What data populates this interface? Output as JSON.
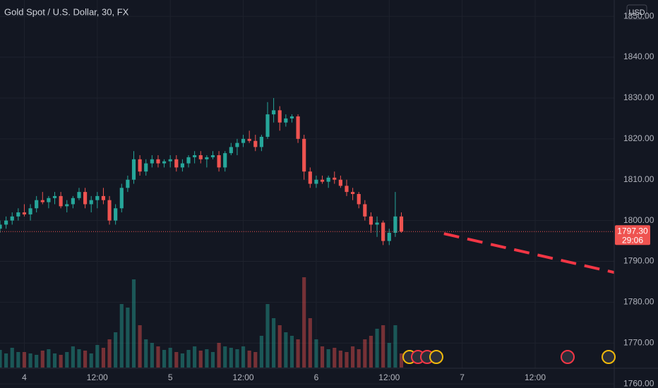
{
  "chart_data": {
    "type": "candlestick",
    "title": "Gold Spot / U.S. Dollar, 30, FX",
    "currency": "USD",
    "up_color": "#26a69a",
    "down_color": "#ef5350",
    "grid": true,
    "xlim": [
      -4,
      97
    ],
    "xticks": [
      {
        "value": 0,
        "label": "4"
      },
      {
        "value": 12,
        "label": "12:00"
      },
      {
        "value": 24,
        "label": "5"
      },
      {
        "value": 36,
        "label": "12:00"
      },
      {
        "value": 48,
        "label": "6"
      },
      {
        "value": 60,
        "label": "12:00"
      },
      {
        "value": 72,
        "label": "7"
      },
      {
        "value": 84,
        "label": "12:00"
      }
    ],
    "ylim": [
      1759,
      1854
    ],
    "yticks": [
      {
        "value": 1760,
        "label": "1760.00"
      },
      {
        "value": 1770,
        "label": "1770.00"
      },
      {
        "value": 1780,
        "label": "1780.00"
      },
      {
        "value": 1790,
        "label": "1790.00"
      },
      {
        "value": 1800,
        "label": "1800.00"
      },
      {
        "value": 1810,
        "label": "1810.00"
      },
      {
        "value": 1820,
        "label": "1820.00"
      },
      {
        "value": 1830,
        "label": "1830.00"
      },
      {
        "value": 1840,
        "label": "1840.00"
      },
      {
        "value": 1850,
        "label": "1850.00"
      }
    ],
    "x": [
      -4,
      -3,
      -2,
      -1,
      0,
      1,
      2,
      3,
      4,
      5,
      6,
      7,
      8,
      9,
      10,
      11,
      12,
      13,
      14,
      15,
      16,
      17,
      18,
      19,
      20,
      21,
      22,
      23,
      24,
      25,
      26,
      27,
      28,
      29,
      30,
      31,
      32,
      33,
      34,
      35,
      36,
      37,
      38,
      39,
      40,
      41,
      42,
      43,
      44,
      45,
      46,
      47,
      48,
      49,
      50,
      51,
      52,
      53,
      54,
      55,
      56,
      57,
      58,
      59,
      60,
      61,
      62
    ],
    "ohlc": [
      [
        1798,
        1800,
        1797,
        1799
      ],
      [
        1799,
        1801,
        1798,
        1800
      ],
      [
        1800,
        1802,
        1799,
        1801
      ],
      [
        1801,
        1803,
        1800,
        1802
      ],
      [
        1802,
        1804,
        1801,
        1801.5
      ],
      [
        1801.5,
        1804,
        1800,
        1803
      ],
      [
        1803,
        1806,
        1802,
        1805
      ],
      [
        1805,
        1807,
        1804,
        1804.5
      ],
      [
        1804.5,
        1806,
        1803,
        1805.5
      ],
      [
        1805.5,
        1807,
        1804,
        1806
      ],
      [
        1806,
        1807,
        1803,
        1803.5
      ],
      [
        1803.5,
        1805,
        1802,
        1804
      ],
      [
        1804,
        1806,
        1803,
        1805.5
      ],
      [
        1805.5,
        1808,
        1805,
        1807
      ],
      [
        1807,
        1808,
        1803,
        1804
      ],
      [
        1804,
        1806,
        1802,
        1805
      ],
      [
        1805,
        1807,
        1803,
        1806
      ],
      [
        1806,
        1808,
        1804,
        1805
      ],
      [
        1805,
        1806,
        1799,
        1800
      ],
      [
        1800,
        1804,
        1799,
        1803
      ],
      [
        1803,
        1809,
        1802,
        1808
      ],
      [
        1808,
        1811,
        1807,
        1810
      ],
      [
        1810,
        1817,
        1809,
        1815
      ],
      [
        1815,
        1816,
        1811,
        1812
      ],
      [
        1812,
        1815,
        1811,
        1814
      ],
      [
        1814,
        1816,
        1813,
        1815
      ],
      [
        1815,
        1816,
        1813,
        1814
      ],
      [
        1814,
        1815,
        1813,
        1814.5
      ],
      [
        1814.5,
        1816,
        1813,
        1815
      ],
      [
        1815,
        1816,
        1812,
        1813
      ],
      [
        1813,
        1815,
        1812,
        1814
      ],
      [
        1814,
        1816,
        1813,
        1815.5
      ],
      [
        1815.5,
        1817,
        1814,
        1816
      ],
      [
        1816,
        1817,
        1814,
        1815
      ],
      [
        1815,
        1816,
        1813,
        1815.5
      ],
      [
        1815.5,
        1817,
        1815,
        1816
      ],
      [
        1816,
        1817,
        1812,
        1813
      ],
      [
        1813,
        1817,
        1812,
        1816.5
      ],
      [
        1816.5,
        1819,
        1816,
        1818
      ],
      [
        1818,
        1820,
        1816,
        1819
      ],
      [
        1819,
        1821,
        1818,
        1820
      ],
      [
        1820,
        1822,
        1819,
        1819.5
      ],
      [
        1819.5,
        1821,
        1817,
        1818
      ],
      [
        1818,
        1821,
        1817,
        1820.5
      ],
      [
        1820.5,
        1829,
        1820,
        1826
      ],
      [
        1826,
        1830,
        1824,
        1827
      ],
      [
        1827,
        1828,
        1822,
        1824
      ],
      [
        1824,
        1826,
        1823,
        1825
      ],
      [
        1825,
        1826,
        1824,
        1825.5
      ],
      [
        1825.5,
        1826,
        1819,
        1820
      ],
      [
        1820,
        1821,
        1810,
        1812
      ],
      [
        1812,
        1813,
        1808,
        1809
      ],
      [
        1809,
        1811,
        1808,
        1810
      ],
      [
        1810,
        1811,
        1809,
        1809.5
      ],
      [
        1809.5,
        1811,
        1808,
        1810.5
      ],
      [
        1810.5,
        1812,
        1809,
        1810
      ],
      [
        1810,
        1811,
        1808,
        1808.5
      ],
      [
        1808.5,
        1810,
        1806,
        1807
      ],
      [
        1807,
        1808,
        1805,
        1806.5
      ],
      [
        1806.5,
        1807,
        1803,
        1804
      ],
      [
        1804,
        1805,
        1800,
        1801
      ],
      [
        1801,
        1802,
        1797,
        1799
      ],
      [
        1799,
        1801,
        1796,
        1799.5
      ],
      [
        1799.5,
        1800,
        1794,
        1795
      ],
      [
        1795,
        1798,
        1794,
        1797
      ],
      [
        1797,
        1807,
        1796,
        1801
      ],
      [
        1801,
        1802,
        1797,
        1797.3
      ]
    ],
    "volume": [
      25,
      20,
      28,
      22,
      22,
      20,
      18,
      24,
      26,
      20,
      18,
      22,
      30,
      26,
      24,
      20,
      32,
      28,
      40,
      50,
      90,
      85,
      125,
      60,
      40,
      35,
      30,
      25,
      28,
      22,
      20,
      25,
      30,
      24,
      26,
      22,
      35,
      30,
      28,
      26,
      30,
      24,
      22,
      45,
      90,
      70,
      60,
      50,
      45,
      40,
      128,
      70,
      40,
      30,
      26,
      28,
      24,
      22,
      30,
      26,
      40,
      45,
      55,
      60,
      35,
      60,
      20
    ],
    "volume_lim": [
      0,
      130
    ],
    "last_price": {
      "value": 1797.3,
      "label": "1797.30",
      "countdown": "29:06"
    },
    "forecast": {
      "color": "#f23645",
      "x": [
        69,
        97
      ],
      "values": [
        1796.8,
        1787.3
      ]
    }
  }
}
